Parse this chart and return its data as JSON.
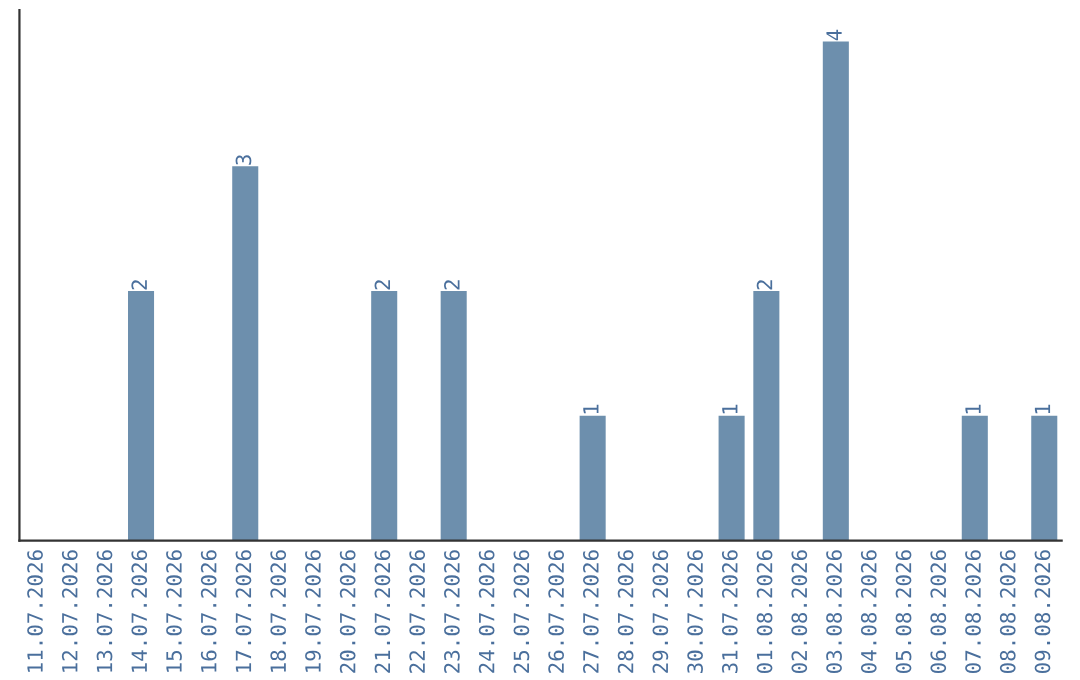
{
  "chart_data": {
    "type": "bar",
    "categories": [
      "11.07.2026",
      "12.07.2026",
      "13.07.2026",
      "14.07.2026",
      "15.07.2026",
      "16.07.2026",
      "17.07.2026",
      "18.07.2026",
      "19.07.2026",
      "20.07.2026",
      "21.07.2026",
      "22.07.2026",
      "23.07.2026",
      "24.07.2026",
      "25.07.2026",
      "26.07.2026",
      "27.07.2026",
      "28.07.2026",
      "29.07.2026",
      "30.07.2026",
      "31.07.2026",
      "01.08.2026",
      "02.08.2026",
      "03.08.2026",
      "04.08.2026",
      "05.08.2026",
      "06.08.2026",
      "07.08.2026",
      "08.08.2026",
      "09.08.2026"
    ],
    "values": [
      0,
      0,
      0,
      2,
      0,
      0,
      3,
      0,
      0,
      0,
      2,
      0,
      2,
      0,
      0,
      0,
      1,
      0,
      0,
      0,
      1,
      2,
      0,
      4,
      0,
      0,
      0,
      1,
      0,
      1
    ],
    "value_labels": [
      null,
      null,
      null,
      "2",
      null,
      null,
      "3",
      null,
      null,
      null,
      "2",
      null,
      "2",
      null,
      null,
      null,
      "1",
      null,
      null,
      null,
      "1",
      "2",
      null,
      "4",
      null,
      null,
      null,
      "1",
      null,
      "1"
    ],
    "color": "#6d8fad",
    "grid": false,
    "legend": false
  }
}
